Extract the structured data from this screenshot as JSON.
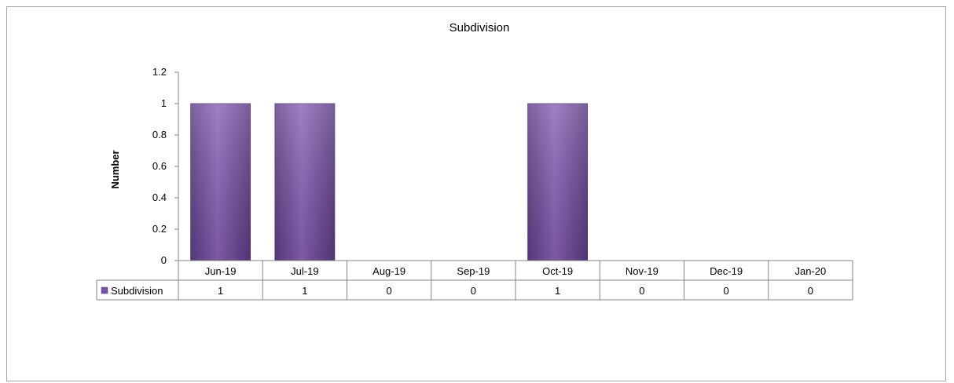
{
  "chart_data": {
    "type": "bar",
    "title": "Subdivision",
    "ylabel": "Number",
    "xlabel": "",
    "categories": [
      "Jun-19",
      "Jul-19",
      "Aug-19",
      "Sep-19",
      "Oct-19",
      "Nov-19",
      "Dec-19",
      "Jan-20"
    ],
    "series": [
      {
        "name": "Subdivision",
        "values": [
          1,
          1,
          0,
          0,
          1,
          0,
          0,
          0
        ],
        "color": "#7a54a8"
      }
    ],
    "ylim": [
      0,
      1.2
    ],
    "yticks": [
      "0",
      "0.2",
      "0.4",
      "0.6",
      "0.8",
      "1",
      "1.2"
    ],
    "grid": false,
    "data_table": true,
    "value_labels": [
      "1",
      "1",
      "0",
      "0",
      "1",
      "0",
      "0",
      "0"
    ]
  }
}
